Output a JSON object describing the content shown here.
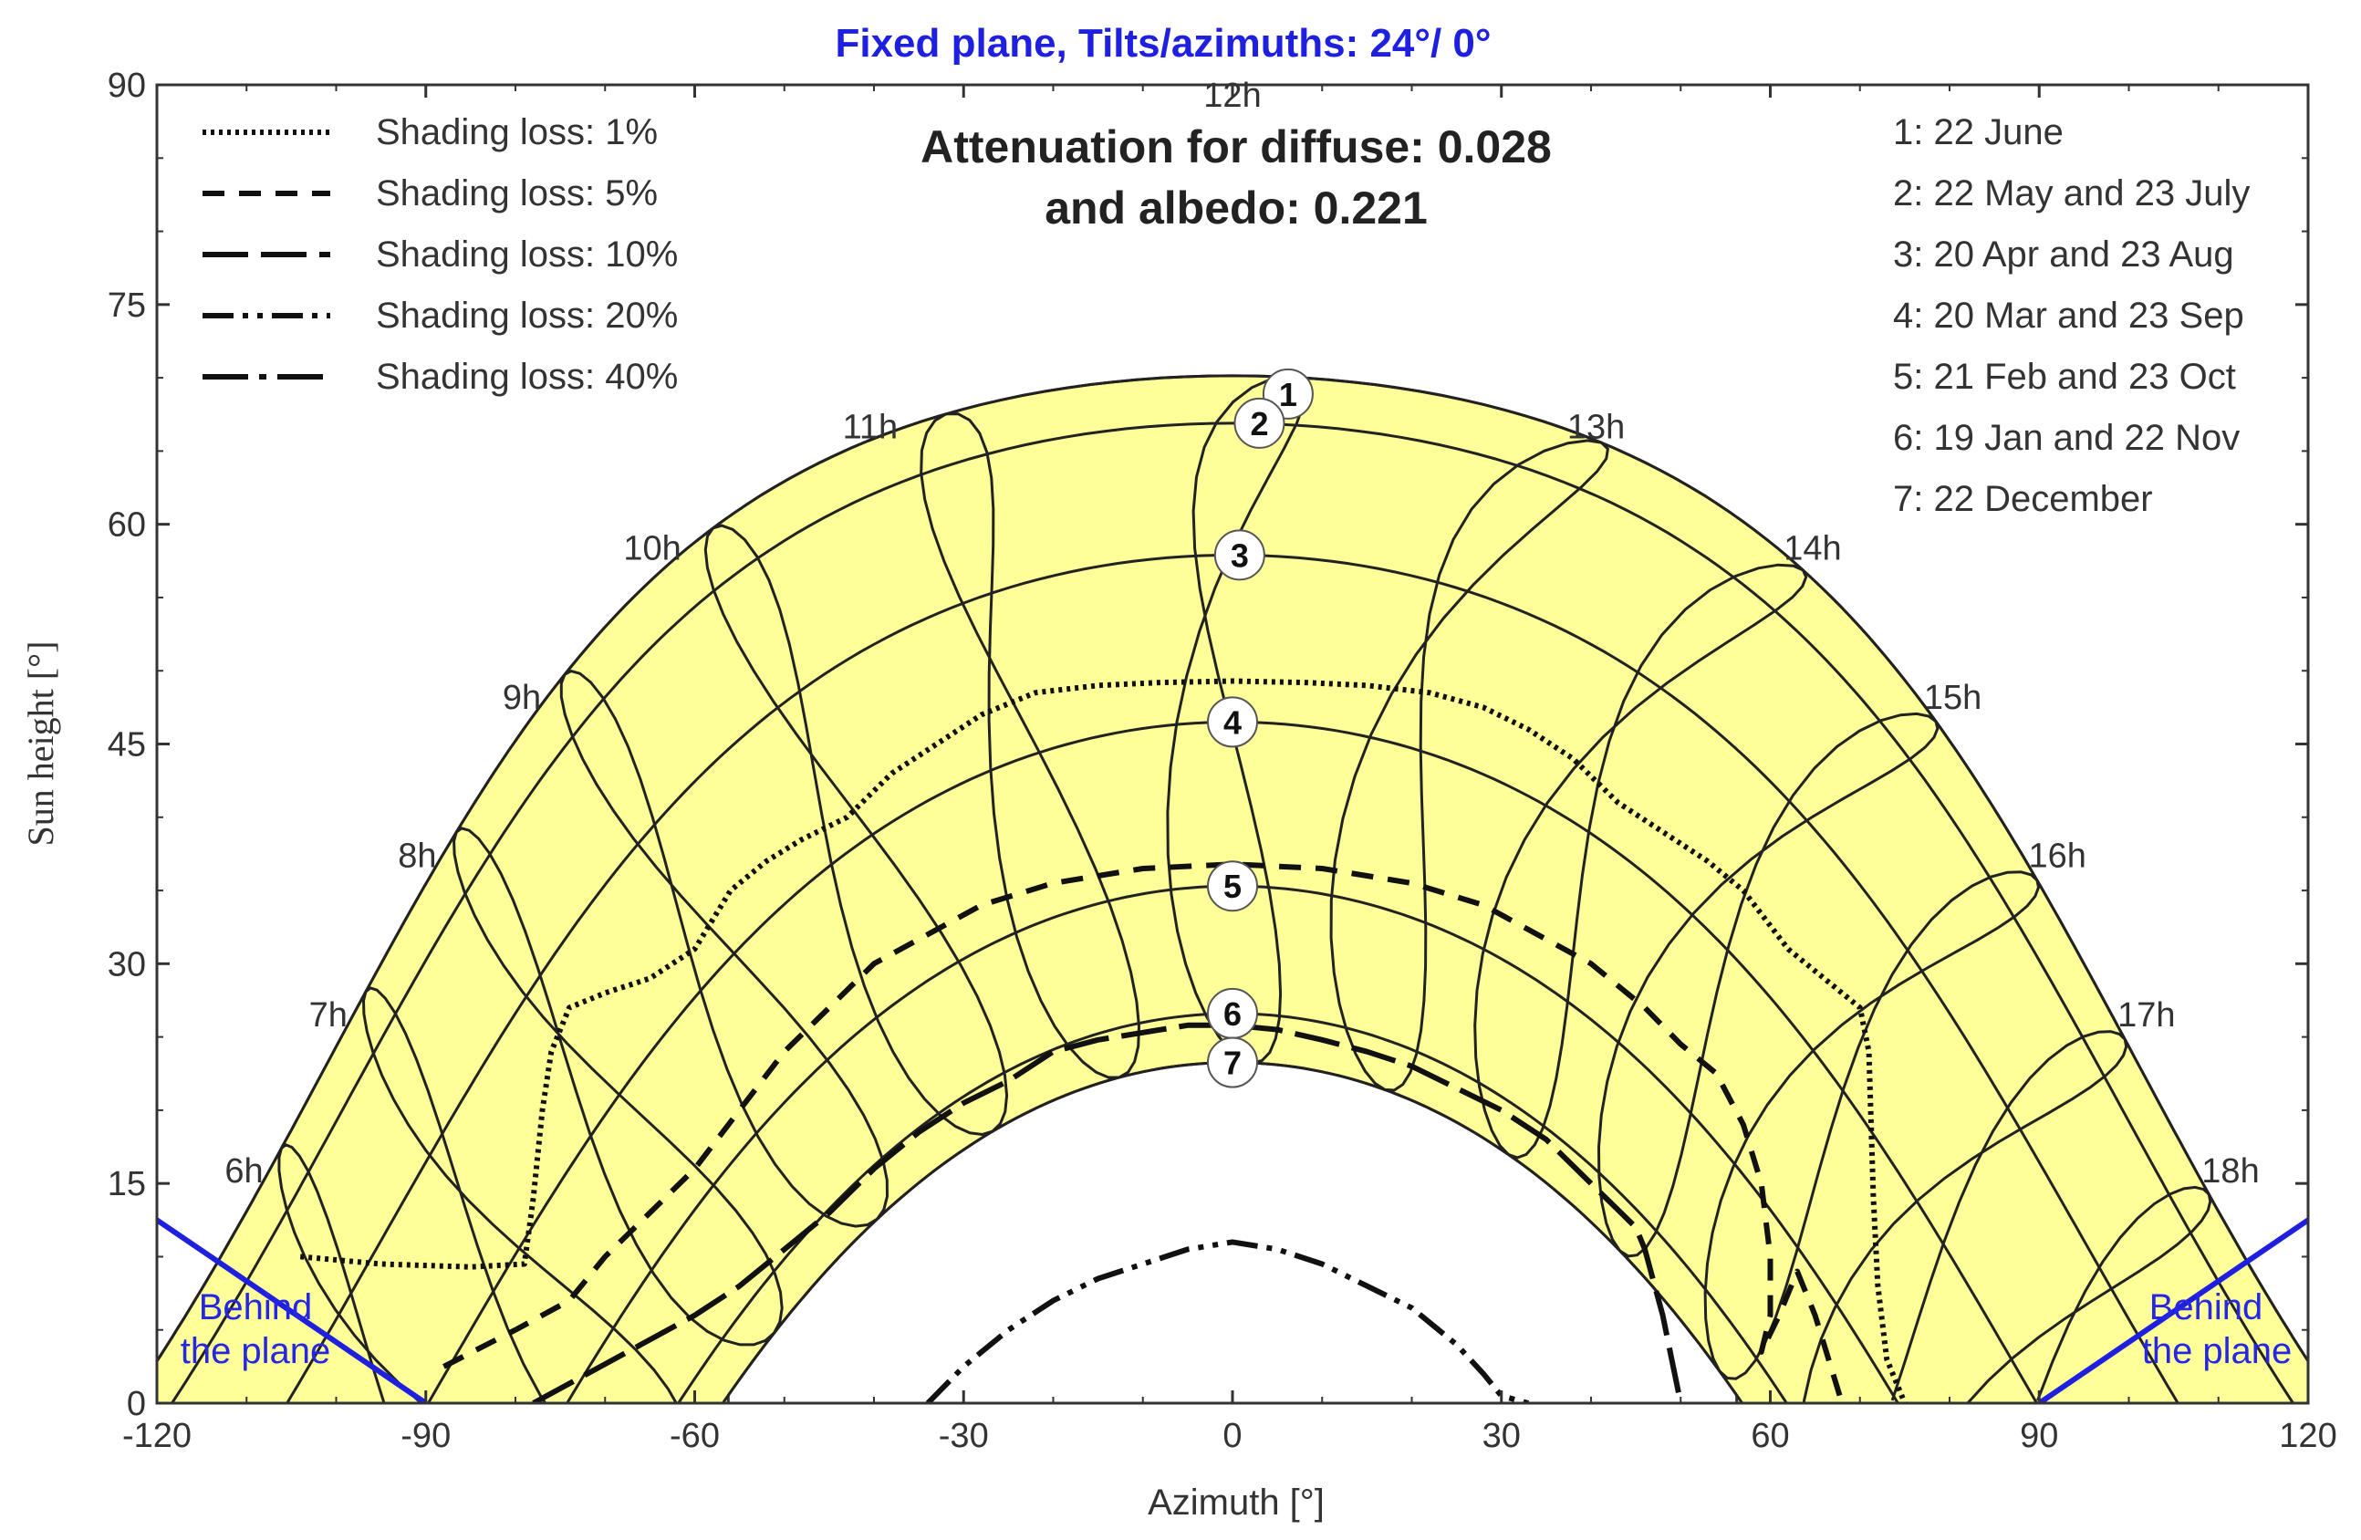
{
  "chart_data": {
    "type": "line",
    "title": "Fixed plane, Tilts/azimuths: 24°/ 0°",
    "annotation": [
      "Attenuation for diffuse: 0.028",
      "and albedo: 0.221"
    ],
    "xlabel": "Azimuth [°]",
    "ylabel": "Sun height [°]",
    "xlim": [
      -120,
      120
    ],
    "ylim": [
      0,
      90
    ],
    "xticks": [
      "-120",
      "-90",
      "-60",
      "-30",
      "0",
      "30",
      "60",
      "90",
      "120"
    ],
    "yticks": [
      "0",
      "15",
      "30",
      "45",
      "60",
      "75",
      "90"
    ],
    "grid": false,
    "colors": {
      "fill": "#ffff99",
      "title": "#1f1fe0",
      "plane": "#1f1fe0",
      "line": "#111111"
    },
    "legend_position": "top-left",
    "shading_series": [
      {
        "name": "Shading loss: 1%",
        "style": "dotted",
        "points": [
          [
            -104,
            10
          ],
          [
            -95,
            9.5
          ],
          [
            -85,
            9.3
          ],
          [
            -79,
            9.5
          ],
          [
            -78,
            14
          ],
          [
            -77,
            20
          ],
          [
            -76,
            24
          ],
          [
            -74,
            27
          ],
          [
            -70,
            28
          ],
          [
            -65,
            29
          ],
          [
            -60,
            31
          ],
          [
            -56,
            35
          ],
          [
            -52,
            37
          ],
          [
            -48,
            38.5
          ],
          [
            -43,
            40
          ],
          [
            -38,
            43
          ],
          [
            -33,
            45
          ],
          [
            -28,
            47
          ],
          [
            -22,
            48.5
          ],
          [
            -15,
            49
          ],
          [
            -8,
            49.2
          ],
          [
            0,
            49.3
          ],
          [
            8,
            49.2
          ],
          [
            15,
            49
          ],
          [
            22,
            48.5
          ],
          [
            28,
            47.5
          ],
          [
            33,
            46
          ],
          [
            38,
            44
          ],
          [
            43,
            41
          ],
          [
            48,
            39
          ],
          [
            53,
            37
          ],
          [
            57,
            35
          ],
          [
            62,
            31
          ],
          [
            66,
            29
          ],
          [
            70,
            27
          ],
          [
            71,
            24
          ],
          [
            71.5,
            14
          ],
          [
            72,
            8
          ],
          [
            73,
            3
          ],
          [
            75,
            0
          ]
        ]
      },
      {
        "name": "Shading loss: 5%",
        "style": "dashed",
        "points": [
          [
            -88,
            2.5
          ],
          [
            -80,
            5
          ],
          [
            -74,
            7
          ],
          [
            -70,
            10
          ],
          [
            -65,
            13
          ],
          [
            -60,
            16
          ],
          [
            -55,
            20
          ],
          [
            -50,
            24
          ],
          [
            -45,
            27
          ],
          [
            -40,
            30
          ],
          [
            -34,
            32
          ],
          [
            -28,
            34
          ],
          [
            -20,
            35.5
          ],
          [
            -10,
            36.5
          ],
          [
            0,
            36.8
          ],
          [
            10,
            36.5
          ],
          [
            20,
            35.5
          ],
          [
            28,
            34
          ],
          [
            34,
            32
          ],
          [
            40,
            30
          ],
          [
            46,
            27
          ],
          [
            50,
            24.5
          ],
          [
            54,
            22.5
          ],
          [
            57,
            19
          ],
          [
            59,
            15
          ],
          [
            60,
            10
          ],
          [
            60,
            6
          ],
          [
            59,
            3.5
          ],
          [
            61,
            6
          ],
          [
            63,
            9
          ],
          [
            65,
            6
          ],
          [
            67,
            2
          ],
          [
            68,
            0
          ]
        ]
      },
      {
        "name": "Shading loss: 10%",
        "style": "longdash",
        "points": [
          [
            -78,
            0
          ],
          [
            -72,
            2
          ],
          [
            -66,
            4
          ],
          [
            -60,
            6
          ],
          [
            -55,
            8
          ],
          [
            -50,
            10.5
          ],
          [
            -45,
            13
          ],
          [
            -40,
            16
          ],
          [
            -35,
            18.5
          ],
          [
            -30,
            20.5
          ],
          [
            -25,
            22
          ],
          [
            -20,
            24
          ],
          [
            -15,
            24.8
          ],
          [
            -10,
            25.3
          ],
          [
            -5,
            25.8
          ],
          [
            0,
            25.8
          ],
          [
            5,
            25.5
          ],
          [
            10,
            24.8
          ],
          [
            15,
            24
          ],
          [
            20,
            23
          ],
          [
            25,
            21.5
          ],
          [
            30,
            20
          ],
          [
            35,
            18
          ],
          [
            40,
            15
          ],
          [
            45,
            12
          ],
          [
            46,
            10.5
          ],
          [
            48,
            6
          ],
          [
            49,
            3
          ],
          [
            50,
            0
          ]
        ]
      },
      {
        "name": "Shading loss: 20%",
        "style": "dashdotdot",
        "points": [
          [
            -34,
            0
          ],
          [
            -30,
            2.5
          ],
          [
            -25,
            5
          ],
          [
            -20,
            7
          ],
          [
            -15,
            8.5
          ],
          [
            -10,
            9.5
          ],
          [
            -5,
            10.5
          ],
          [
            0,
            11
          ],
          [
            5,
            10.5
          ],
          [
            10,
            9.5
          ],
          [
            15,
            8
          ],
          [
            20,
            6.5
          ],
          [
            25,
            4
          ],
          [
            28,
            2
          ],
          [
            30,
            0.5
          ],
          [
            33,
            0
          ]
        ]
      },
      {
        "name": "Shading loss: 40%",
        "style": "dashdot",
        "points": []
      }
    ],
    "date_curves": [
      {
        "label": "1",
        "name": "1: 22 June",
        "declination": 23.44
      },
      {
        "label": "2",
        "name": "2: 22 May and 23 July",
        "declination": 20.2
      },
      {
        "label": "3",
        "name": "3: 20 Apr and 23 Aug",
        "declination": 11.2
      },
      {
        "label": "4",
        "name": "4: 20 Mar and 23 Sep",
        "declination": -0.2
      },
      {
        "label": "5",
        "name": "5: 21 Feb and 23 Oct",
        "declination": -11.4
      },
      {
        "label": "6",
        "name": "6: 19 Jan and 22 Nov",
        "declination": -20.1
      },
      {
        "label": "7",
        "name": "7: 22 December",
        "declination": -23.44
      }
    ],
    "latitude": 43.3,
    "hour_labels": [
      "6h",
      "7h",
      "8h",
      "9h",
      "10h",
      "11h",
      "12h",
      "13h",
      "14h",
      "15h",
      "16h",
      "17h",
      "18h"
    ],
    "plane_boundary_label": [
      "Behind",
      "the plane"
    ],
    "plane_boundary_points": [
      [
        -120,
        12.5
      ],
      [
        -90,
        0
      ],
      [
        90,
        0
      ],
      [
        120,
        12.5
      ]
    ]
  }
}
